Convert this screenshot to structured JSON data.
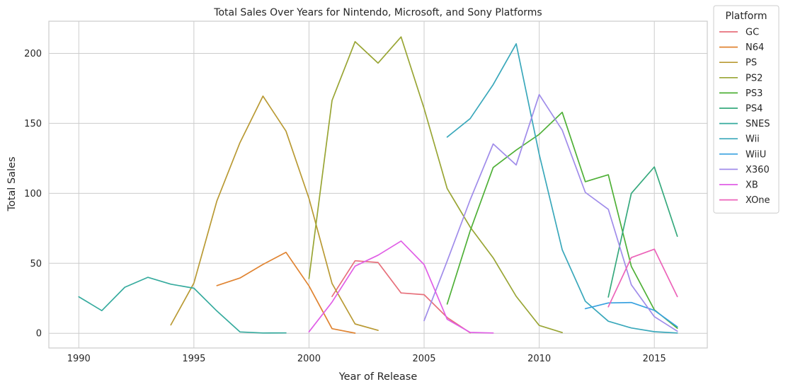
{
  "chart_data": {
    "type": "line",
    "title": "Total Sales Over Years for Nintendo, Microsoft, and Sony Platforms",
    "xlabel": "Year of Release",
    "ylabel": "Total Sales",
    "xlim": [
      1988.7,
      2017.3
    ],
    "ylim": [
      -10.5,
      223
    ],
    "xticks": [
      1990,
      1995,
      2000,
      2005,
      2010,
      2015
    ],
    "yticks": [
      0,
      50,
      100,
      150,
      200
    ],
    "grid": true,
    "legend": {
      "title": "Platform",
      "placement": "outside-top-right"
    },
    "series": [
      {
        "name": "GC",
        "color": "#e7707b",
        "points": [
          [
            2001,
            26.3
          ],
          [
            2002,
            51.8
          ],
          [
            2003,
            50.6
          ],
          [
            2004,
            28.8
          ],
          [
            2005,
            27.6
          ],
          [
            2006,
            11.3
          ],
          [
            2007,
            0.3
          ]
        ]
      },
      {
        "name": "N64",
        "color": "#e08432",
        "points": [
          [
            1996,
            34.1
          ],
          [
            1997,
            39.5
          ],
          [
            1998,
            49.2
          ],
          [
            1999,
            57.9
          ],
          [
            2000,
            33.9
          ],
          [
            2001,
            3.3
          ],
          [
            2002,
            0.1
          ]
        ]
      },
      {
        "name": "PS",
        "color": "#b99a34",
        "points": [
          [
            1994,
            6.0
          ],
          [
            1995,
            35.9
          ],
          [
            1996,
            94.7
          ],
          [
            1997,
            136.2
          ],
          [
            1998,
            169.5
          ],
          [
            1999,
            144.5
          ],
          [
            2000,
            96.4
          ],
          [
            2001,
            35.6
          ],
          [
            2002,
            6.7
          ],
          [
            2003,
            2.1
          ]
        ]
      },
      {
        "name": "PS2",
        "color": "#99a534",
        "points": [
          [
            2000,
            39.1
          ],
          [
            2001,
            166.4
          ],
          [
            2002,
            208.4
          ],
          [
            2003,
            193.1
          ],
          [
            2004,
            211.8
          ],
          [
            2005,
            160.7
          ],
          [
            2006,
            103.4
          ],
          [
            2007,
            75.9
          ],
          [
            2008,
            53.9
          ],
          [
            2009,
            26.4
          ],
          [
            2010,
            5.6
          ],
          [
            2011,
            0.5
          ]
        ]
      },
      {
        "name": "PS3",
        "color": "#4fb037",
        "points": [
          [
            2006,
            20.9
          ],
          [
            2007,
            73.2
          ],
          [
            2008,
            118.5
          ],
          [
            2009,
            130.9
          ],
          [
            2010,
            142.2
          ],
          [
            2011,
            157.9
          ],
          [
            2012,
            108.3
          ],
          [
            2013,
            113.3
          ],
          [
            2014,
            47.8
          ],
          [
            2015,
            16.8
          ],
          [
            2016,
            3.6
          ]
        ]
      },
      {
        "name": "PS4",
        "color": "#36a97d",
        "points": [
          [
            2013,
            25.9
          ],
          [
            2014,
            100.0
          ],
          [
            2015,
            118.9
          ],
          [
            2016,
            69.3
          ]
        ]
      },
      {
        "name": "SNES",
        "color": "#36ab9e",
        "points": [
          [
            1990,
            26.1
          ],
          [
            1991,
            16.2
          ],
          [
            1992,
            32.9
          ],
          [
            1993,
            40.0
          ],
          [
            1994,
            35.1
          ],
          [
            1995,
            32.2
          ],
          [
            1996,
            15.9
          ],
          [
            1997,
            0.99
          ],
          [
            1998,
            0.22
          ],
          [
            1999,
            0.26
          ]
        ]
      },
      {
        "name": "Wii",
        "color": "#3aa8bb",
        "points": [
          [
            2006,
            140.2
          ],
          [
            2007,
            153.4
          ],
          [
            2008,
            177.7
          ],
          [
            2009,
            206.9
          ],
          [
            2010,
            127.9
          ],
          [
            2011,
            59.7
          ],
          [
            2012,
            22.9
          ],
          [
            2013,
            8.6
          ],
          [
            2014,
            3.8
          ],
          [
            2015,
            1.1
          ],
          [
            2016,
            0.2
          ]
        ]
      },
      {
        "name": "WiiU",
        "color": "#38a1e0",
        "points": [
          [
            2012,
            17.6
          ],
          [
            2013,
            21.7
          ],
          [
            2014,
            22.0
          ],
          [
            2015,
            16.4
          ],
          [
            2016,
            4.6
          ]
        ]
      },
      {
        "name": "X360",
        "color": "#a08cea",
        "points": [
          [
            2005,
            9.0
          ],
          [
            2006,
            51.6
          ],
          [
            2007,
            95.4
          ],
          [
            2008,
            135.3
          ],
          [
            2009,
            120.3
          ],
          [
            2010,
            170.6
          ],
          [
            2011,
            145.2
          ],
          [
            2012,
            100.7
          ],
          [
            2013,
            88.6
          ],
          [
            2014,
            34.7
          ],
          [
            2015,
            11.9
          ],
          [
            2016,
            1.5
          ]
        ]
      },
      {
        "name": "XB",
        "color": "#e05ee6",
        "points": [
          [
            2000,
            1.0
          ],
          [
            2001,
            22.3
          ],
          [
            2002,
            48.0
          ],
          [
            2003,
            55.8
          ],
          [
            2004,
            65.9
          ],
          [
            2005,
            49.1
          ],
          [
            2006,
            10.0
          ],
          [
            2007,
            0.6
          ],
          [
            2008,
            0.2
          ]
        ]
      },
      {
        "name": "XOne",
        "color": "#ec63b9",
        "points": [
          [
            2013,
            18.9
          ],
          [
            2014,
            54.1
          ],
          [
            2015,
            60.1
          ],
          [
            2016,
            26.2
          ]
        ]
      }
    ]
  }
}
